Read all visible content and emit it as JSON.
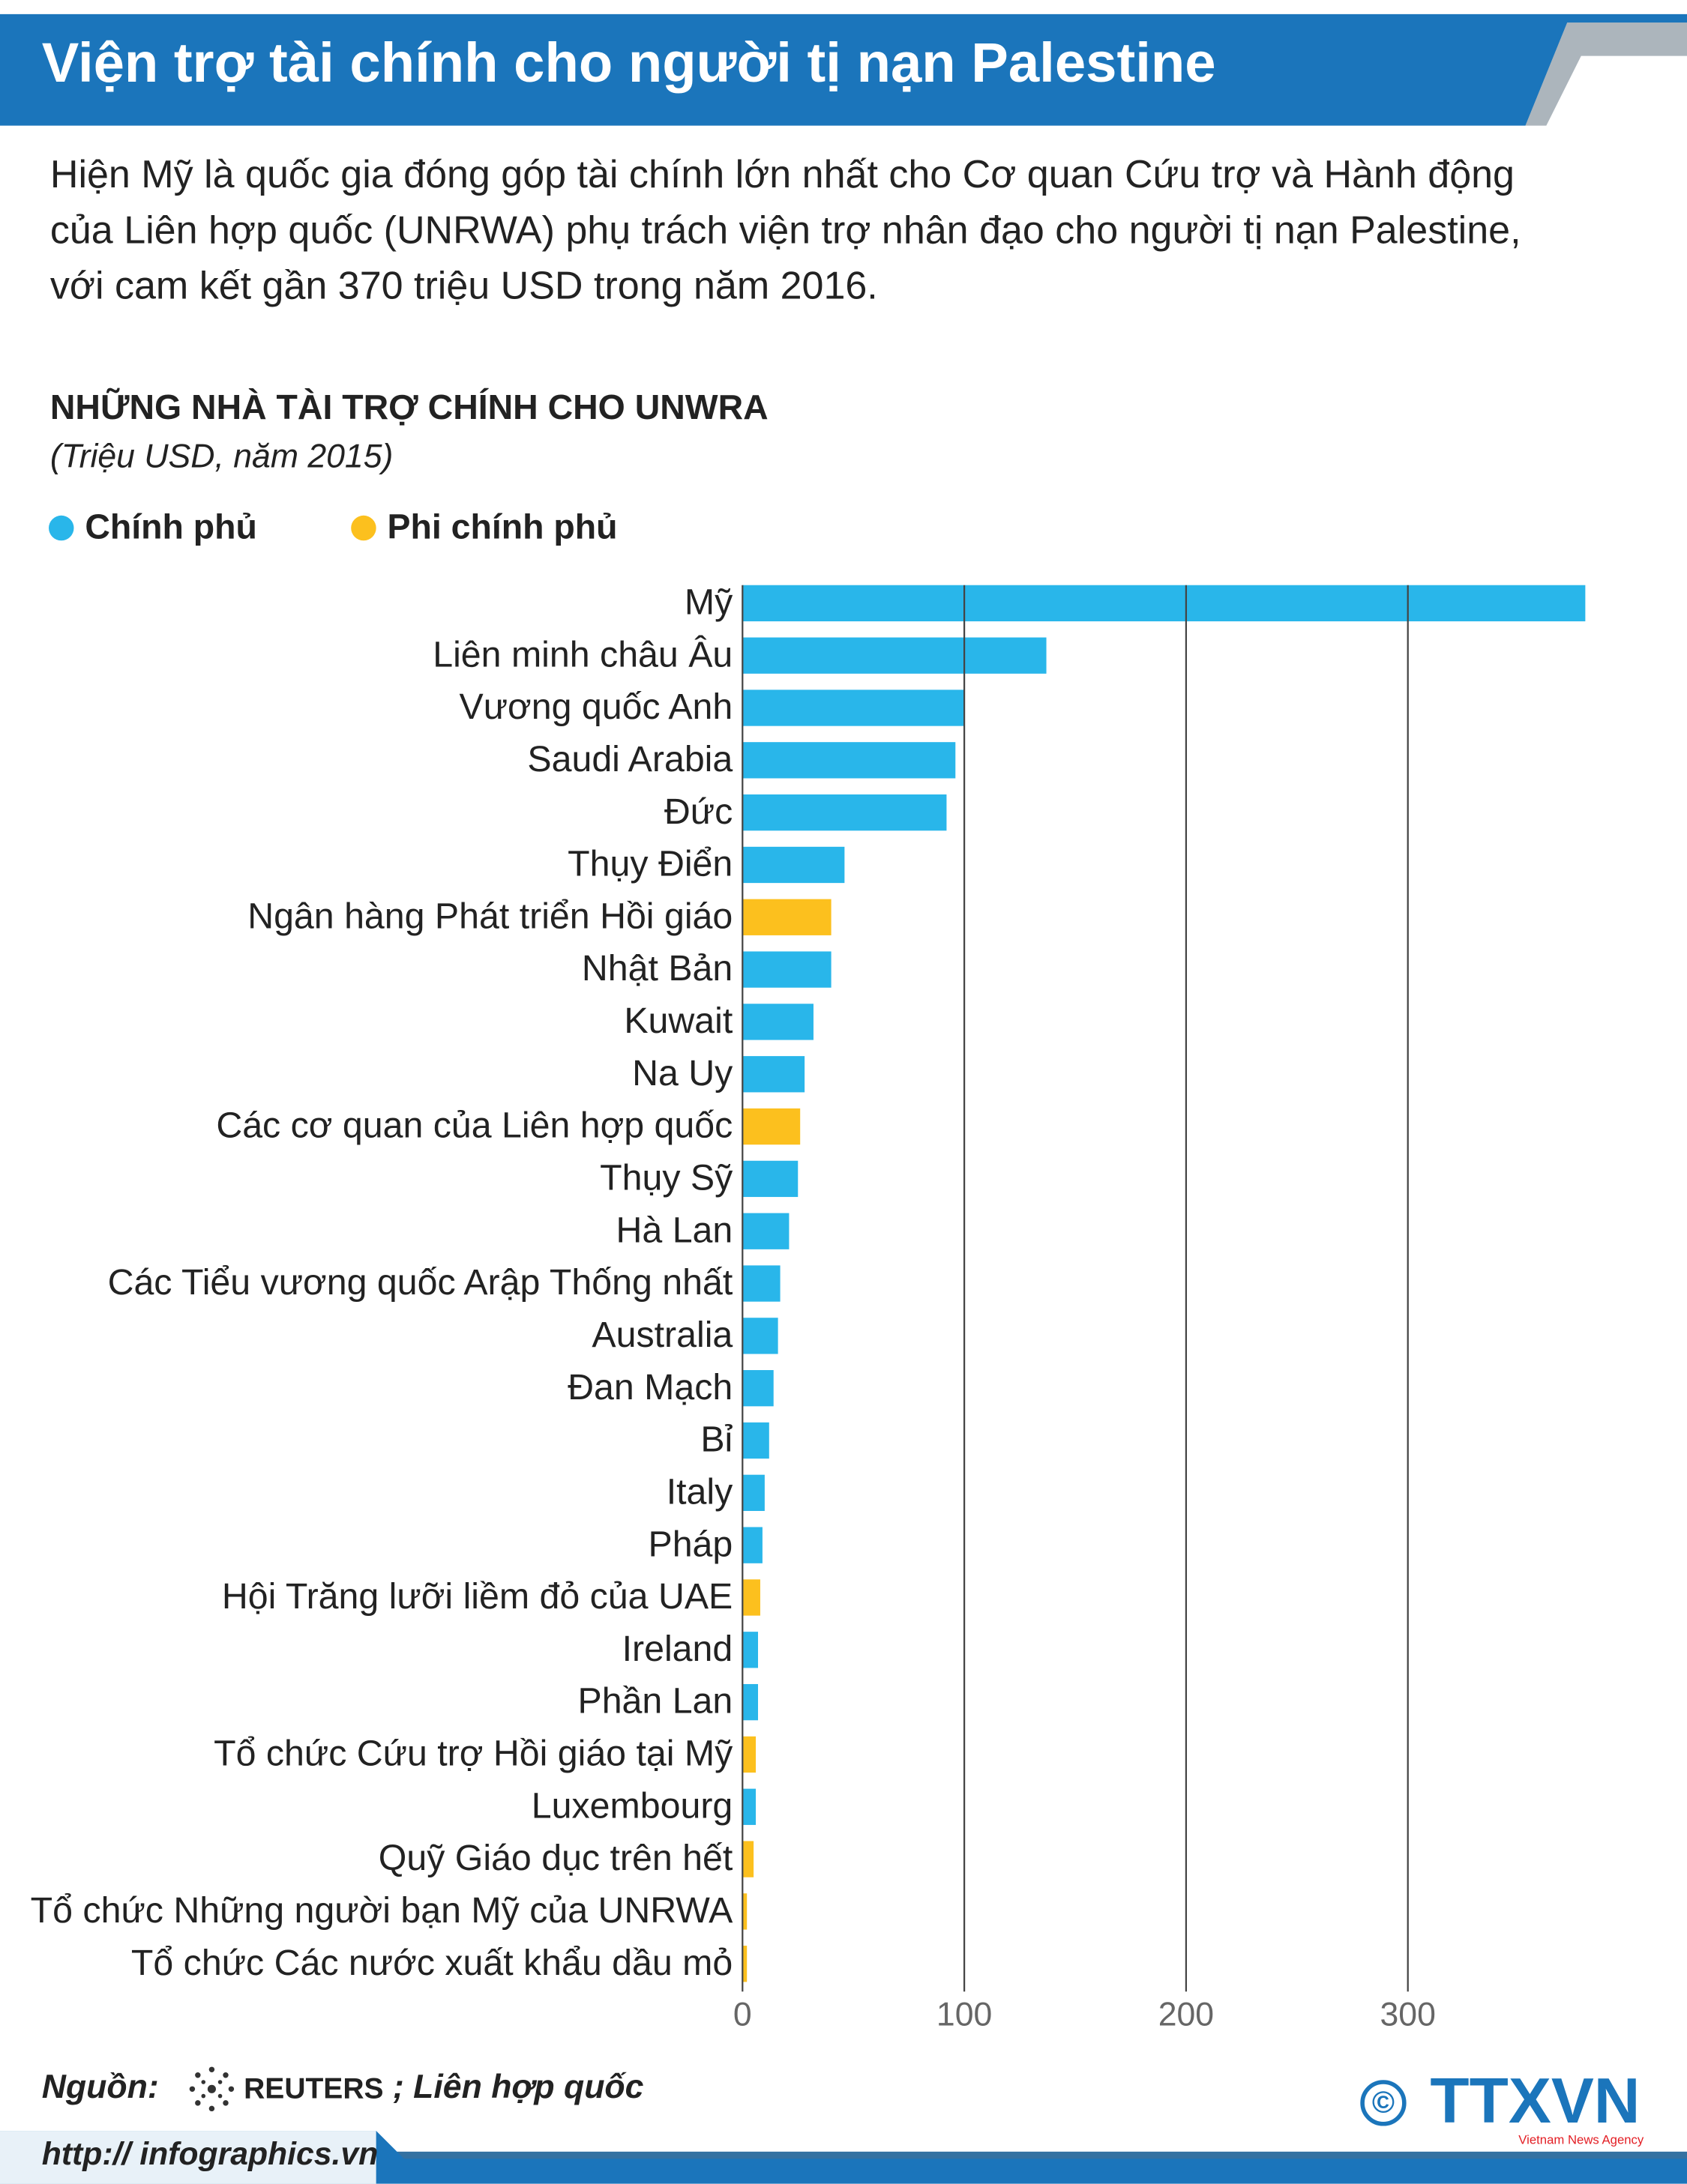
{
  "chart_data": {
    "type": "bar",
    "orientation": "horizontal",
    "title": "Viện trợ tài chính cho người tị nạn Palestine",
    "description": [
      "Hiện Mỹ là quốc gia đóng góp tài chính lớn nhất cho Cơ quan Cứu trợ và Hành động",
      "của Liên hợp quốc (UNRWA) phụ trách viện trợ nhân đạo cho người tị nạn Palestine,",
      "với cam kết gần 370 triệu USD trong năm 2016."
    ],
    "chart_title": "NHỮNG NHÀ TÀI TRỢ CHÍNH CHO UNWRA",
    "subtitle": "(Triệu USD, năm 2015)",
    "legend": [
      {
        "name": "Chính phủ",
        "color": "#29b6ea"
      },
      {
        "name": "Phi chính phủ",
        "color": "#fcc01e"
      }
    ],
    "categories": [
      "Mỹ",
      "Liên minh châu Âu",
      "Vương quốc Anh",
      "Saudi Arabia",
      "Đức",
      "Thụy Điển",
      "Ngân hàng Phát triển Hồi giáo",
      "Nhật Bản",
      "Kuwait",
      "Na Uy",
      "Các cơ quan của Liên hợp quốc",
      "Thụy Sỹ",
      "Hà Lan",
      "Các Tiểu vương quốc Arập Thống nhất",
      "Australia",
      "Đan Mạch",
      "Bỉ",
      "Italy",
      "Pháp",
      "Hội Trăng lưỡi liềm đỏ của UAE",
      "Ireland",
      "Phần Lan",
      "Tổ chức Cứu trợ Hồi giáo tại Mỹ",
      "Luxembourg",
      "Quỹ Giáo dục trên hết",
      "Tổ chức Những người bạn Mỹ của UNRWA",
      "Tổ chức Các nước xuất khẩu dầu mỏ"
    ],
    "values": [
      380,
      137,
      100,
      96,
      92,
      46,
      40,
      40,
      32,
      28,
      26,
      25,
      21,
      17,
      16,
      14,
      12,
      10,
      9,
      8,
      7,
      7,
      6,
      6,
      5,
      2,
      2
    ],
    "colors": [
      "#29b6ea",
      "#29b6ea",
      "#29b6ea",
      "#29b6ea",
      "#29b6ea",
      "#29b6ea",
      "#fcc01e",
      "#29b6ea",
      "#29b6ea",
      "#29b6ea",
      "#fcc01e",
      "#29b6ea",
      "#29b6ea",
      "#29b6ea",
      "#29b6ea",
      "#29b6ea",
      "#29b6ea",
      "#29b6ea",
      "#29b6ea",
      "#fcc01e",
      "#29b6ea",
      "#29b6ea",
      "#fcc01e",
      "#29b6ea",
      "#fcc01e",
      "#fcc01e",
      "#fcc01e"
    ],
    "xlim": [
      0,
      380
    ],
    "xticks": [
      0,
      100,
      200,
      300
    ],
    "grid": true,
    "source_label": "Nguồn:",
    "source_reuters": "REUTERS",
    "source_other": "; Liên hợp quốc",
    "website": "http:// infographics.vn",
    "logo": "TTXVN",
    "logo_sub": "Vietnam News Agency",
    "copyright": "©"
  }
}
